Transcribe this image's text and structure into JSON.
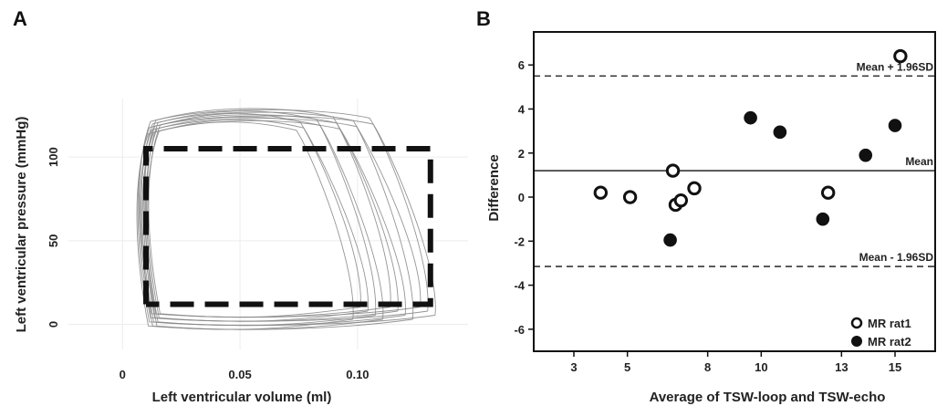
{
  "chart_data": [
    {
      "panel": "A",
      "type": "line",
      "title": "",
      "xlabel": "Left ventricular volume (ml)",
      "ylabel": "Left ventricular pressure (mmHg)",
      "xlim": [
        -0.023,
        0.147
      ],
      "ylim": [
        -15,
        135
      ],
      "xticks": [
        0,
        0.05,
        0.1
      ],
      "xtick_labels": [
        "0",
        "0.05",
        "0.10"
      ],
      "yticks": [
        0,
        50,
        100
      ],
      "ytick_labels": [
        "0",
        "50",
        "100"
      ],
      "grid": true,
      "loops": {
        "count": 12,
        "v_ed_range": [
          0.098,
          0.133
        ],
        "v_es_range": [
          0.007,
          0.012
        ],
        "p_ed_range": [
          3,
          12
        ],
        "p_es_range": [
          118,
          126
        ]
      },
      "idealized_box": {
        "x": [
          0.01,
          0.01,
          0.131,
          0.131,
          0.01
        ],
        "y": [
          12,
          105,
          105,
          12,
          12
        ],
        "style": "dashed"
      }
    },
    {
      "panel": "B",
      "type": "scatter",
      "title": "",
      "xlabel": "Average of TSW-loop and TSW-echo",
      "ylabel": "Difference",
      "xlim": [
        1.5,
        16.5
      ],
      "ylim": [
        -7,
        7.5
      ],
      "xticks": [
        3,
        5,
        8,
        10,
        13,
        15
      ],
      "xtick_labels": [
        "3",
        "5",
        "8",
        "10",
        "13",
        "15"
      ],
      "yticks": [
        -6,
        -4,
        -2,
        0,
        2,
        4,
        6
      ],
      "ytick_labels": [
        "-6",
        "-4",
        "-2",
        "0",
        "2",
        "4",
        "6"
      ],
      "reference_lines": [
        {
          "label": "Mean + 1.96SD",
          "y": 5.5,
          "style": "dashed"
        },
        {
          "label": "Mean",
          "y": 1.2,
          "style": "solid"
        },
        {
          "label": "Mean - 1.96SD",
          "y": -3.15,
          "style": "dashed"
        }
      ],
      "series": [
        {
          "name": "MR rat1",
          "marker": "open-circle",
          "x": [
            4.0,
            5.1,
            6.7,
            6.8,
            7.0,
            7.5,
            12.5,
            15.2
          ],
          "y": [
            0.2,
            0.0,
            1.2,
            -0.35,
            -0.15,
            0.4,
            0.2,
            6.4
          ]
        },
        {
          "name": "MR rat2",
          "marker": "filled-circle",
          "x": [
            6.6,
            9.6,
            10.7,
            12.3,
            13.9,
            15.0
          ],
          "y": [
            -1.95,
            3.6,
            2.95,
            -1.0,
            1.9,
            3.25
          ]
        }
      ],
      "legend_position": "bottom-right"
    }
  ],
  "panels": {
    "a_letter": "A",
    "b_letter": "B"
  },
  "colors": {
    "ink": "#111111",
    "loop": "#8a8a8a",
    "grid": "#ececec"
  }
}
